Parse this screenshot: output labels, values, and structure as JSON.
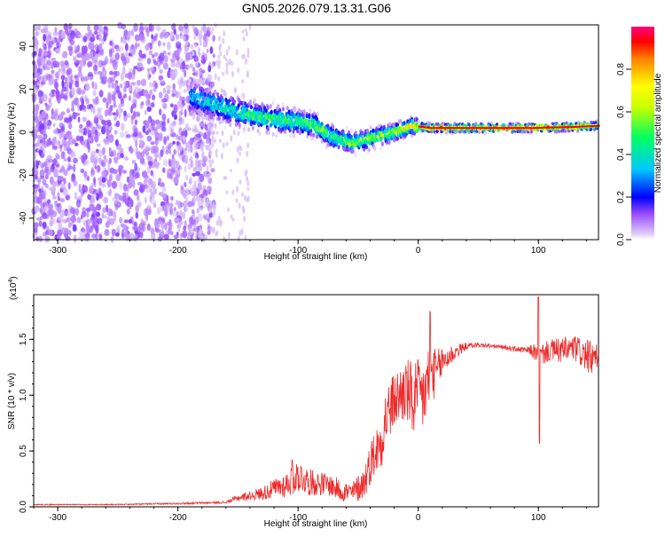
{
  "title": "GN05.2026.079.13.31.G06",
  "colors": {
    "snr_line": "#ee2a2a",
    "axis": "#000000",
    "spectrum_bg": "#ffffff",
    "colormap": [
      "#dcc8f8",
      "#9b4dff",
      "#5a00ff",
      "#0000ff",
      "#00c8ff",
      "#00ff80",
      "#ffff00",
      "#ff8000",
      "#ff0000",
      "#ff0080"
    ]
  },
  "chart_data": [
    {
      "type": "heatmap",
      "title": "GN05.2026.079.13.31.G06",
      "xlabel": "Height of straight line (km)",
      "ylabel": "Frequency (Hz)",
      "xlim": [
        -320,
        150
      ],
      "ylim": [
        -50,
        50
      ],
      "x_ticks": [
        -300,
        -200,
        -100,
        0,
        100
      ],
      "x_tick_labels": [
        "-300",
        "-200",
        "-100",
        "0",
        "100"
      ],
      "y_ticks": [
        -40,
        -20,
        0,
        20,
        40
      ],
      "y_tick_labels": [
        "-40",
        "-20",
        "0",
        "20",
        "40"
      ],
      "colorbar": {
        "label": "Normalized spectral amplitude",
        "range": [
          0.0,
          1.0
        ],
        "ticks": [
          0.0,
          0.2,
          0.4,
          0.6,
          0.8
        ],
        "tick_labels": [
          "0.0",
          "0.2",
          "0.4",
          "0.6",
          "0.8"
        ]
      },
      "ridge": [
        {
          "x": -185,
          "freq": 16,
          "amp": 0.35
        },
        {
          "x": -160,
          "freq": 11,
          "amp": 0.4
        },
        {
          "x": -140,
          "freq": 8,
          "amp": 0.45
        },
        {
          "x": -120,
          "freq": 6,
          "amp": 0.5
        },
        {
          "x": -100,
          "freq": 5,
          "amp": 0.5
        },
        {
          "x": -85,
          "freq": 3,
          "amp": 0.55
        },
        {
          "x": -72,
          "freq": -2,
          "amp": 0.5
        },
        {
          "x": -55,
          "freq": -5,
          "amp": 0.55
        },
        {
          "x": -40,
          "freq": -3,
          "amp": 0.6
        },
        {
          "x": -20,
          "freq": 0,
          "amp": 0.65
        },
        {
          "x": -5,
          "freq": 3,
          "amp": 0.7
        },
        {
          "x": 10,
          "freq": 2,
          "amp": 0.9
        },
        {
          "x": 50,
          "freq": 2,
          "amp": 0.9
        },
        {
          "x": 95,
          "freq": 2,
          "amp": 0.85
        },
        {
          "x": 130,
          "freq": 2.5,
          "amp": 0.8
        },
        {
          "x": 150,
          "freq": 3,
          "amp": 0.75
        }
      ]
    },
    {
      "type": "line",
      "xlabel": "Height of straight line (km)",
      "ylabel": "SNR (10 * v/v)",
      "y_scale_label": "(x10",
      "y_scale_exponent": "4",
      "xlim": [
        -320,
        150
      ],
      "ylim": [
        0.0,
        1.9
      ],
      "x_ticks": [
        -300,
        -200,
        -100,
        0,
        100
      ],
      "x_tick_labels": [
        "-300",
        "-200",
        "-100",
        "0",
        "100"
      ],
      "y_ticks": [
        0.0,
        0.5,
        1.0,
        1.5
      ],
      "y_tick_labels": [
        "0.0",
        "0.5",
        "1.0",
        "1.5"
      ],
      "series": [
        {
          "name": "SNR",
          "x": [
            -320,
            -250,
            -200,
            -160,
            -150,
            -140,
            -130,
            -110,
            -100,
            -90,
            -75,
            -65,
            -55,
            -45,
            -38,
            -32,
            -27,
            -20,
            -10,
            -5,
            5,
            10,
            15,
            20,
            30,
            40,
            50,
            70,
            90,
            95,
            100,
            110,
            120,
            130,
            140,
            150
          ],
          "y": [
            0.02,
            0.02,
            0.03,
            0.04,
            0.08,
            0.1,
            0.12,
            0.2,
            0.28,
            0.22,
            0.2,
            0.15,
            0.12,
            0.22,
            0.45,
            0.55,
            0.8,
            0.95,
            1.05,
            0.95,
            1.0,
            1.2,
            1.2,
            1.3,
            1.38,
            1.44,
            1.45,
            1.43,
            1.4,
            1.4,
            1.35,
            1.4,
            1.4,
            1.42,
            1.35,
            1.3
          ],
          "noise": [
            0.005,
            0.005,
            0.008,
            0.01,
            0.03,
            0.04,
            0.06,
            0.12,
            0.15,
            0.12,
            0.1,
            0.1,
            0.1,
            0.15,
            0.2,
            0.25,
            0.3,
            0.25,
            0.3,
            0.35,
            0.35,
            0.3,
            0.2,
            0.15,
            0.08,
            0.03,
            0.02,
            0.02,
            0.03,
            0.06,
            0.1,
            0.1,
            0.12,
            0.12,
            0.15,
            0.15
          ]
        }
      ],
      "spikes": [
        {
          "x": 10,
          "y": 1.75
        },
        {
          "x": 100,
          "y": 1.88
        },
        {
          "x": 101,
          "y": 0.57
        },
        {
          "x": -105,
          "y": 0.42
        }
      ]
    }
  ]
}
